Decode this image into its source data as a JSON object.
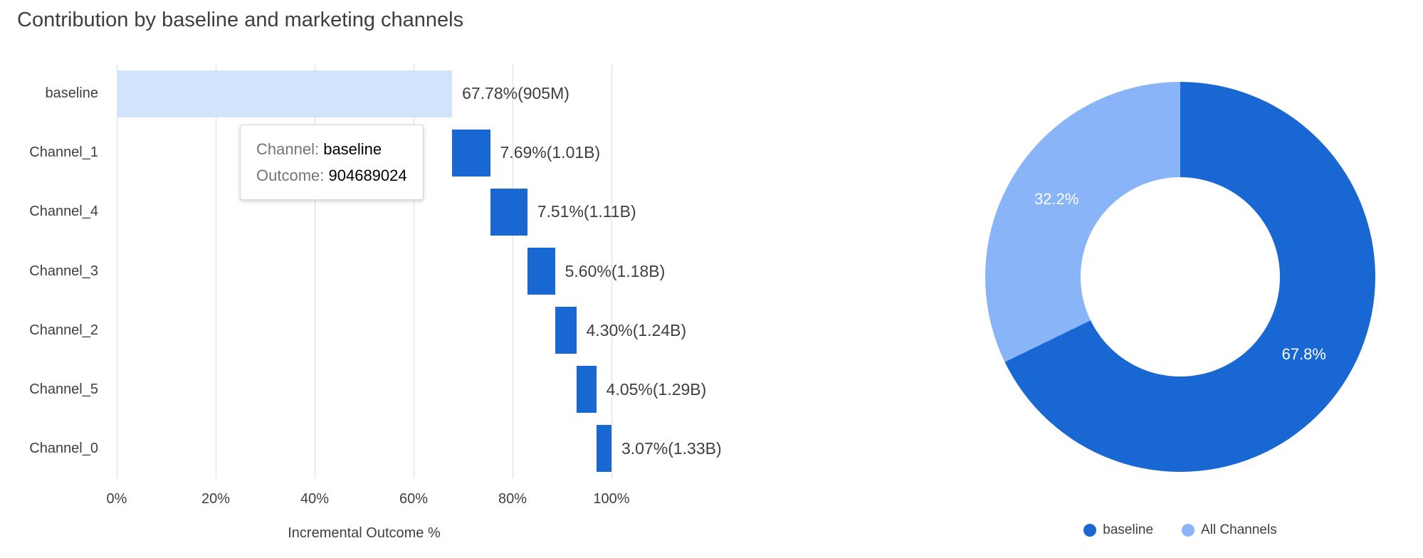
{
  "colors": {
    "primary_blue": "#1967d2",
    "light_blue": "#8ab4f8",
    "baseline_fill": "#d2e3fc",
    "gridline": "#dadce0",
    "text_dark": "#3c4043",
    "tooltip_label_gray": "#757575",
    "tooltip_value_black": "#000000",
    "slice_label_white": "#ffffff"
  },
  "chart_data": [
    {
      "type": "bar",
      "subtype": "horizontal-waterfall",
      "title": "Contribution by baseline and marketing channels",
      "xlabel": "Incremental Outcome %",
      "xlim": [
        0,
        107
      ],
      "grid": true,
      "x_ticks": [
        "0%",
        "20%",
        "40%",
        "60%",
        "80%",
        "100%"
      ],
      "x_tick_values": [
        0,
        20,
        40,
        60,
        80,
        100
      ],
      "categories": [
        "baseline",
        "Channel_1",
        "Channel_4",
        "Channel_3",
        "Channel_2",
        "Channel_5",
        "Channel_0"
      ],
      "segments": [
        {
          "category": "baseline",
          "start": 0,
          "end": 67.78,
          "pct": 67.78,
          "label": "67.78%(905M)",
          "color": "#d2e3fc"
        },
        {
          "category": "Channel_1",
          "start": 67.78,
          "end": 75.47,
          "pct": 7.69,
          "label": "7.69%(1.01B)",
          "color": "#1967d2"
        },
        {
          "category": "Channel_4",
          "start": 75.47,
          "end": 82.98,
          "pct": 7.51,
          "label": "7.51%(1.11B)",
          "color": "#1967d2"
        },
        {
          "category": "Channel_3",
          "start": 82.98,
          "end": 88.58,
          "pct": 5.6,
          "label": "5.60%(1.18B)",
          "color": "#1967d2"
        },
        {
          "category": "Channel_2",
          "start": 88.58,
          "end": 92.88,
          "pct": 4.3,
          "label": "4.30%(1.24B)",
          "color": "#1967d2"
        },
        {
          "category": "Channel_5",
          "start": 92.88,
          "end": 96.93,
          "pct": 4.05,
          "label": "4.05%(1.29B)",
          "color": "#1967d2"
        },
        {
          "category": "Channel_0",
          "start": 96.93,
          "end": 100.0,
          "pct": 3.07,
          "label": "3.07%(1.33B)",
          "color": "#1967d2"
        }
      ],
      "tooltip": {
        "channel_label": "Channel:",
        "channel_value": "baseline",
        "outcome_label": "Outcome:",
        "outcome_value": "904689024"
      }
    },
    {
      "type": "pie",
      "subtype": "donut",
      "legend_position": "bottom",
      "slices": [
        {
          "label": "baseline",
          "value": 67.8,
          "text": "67.8%",
          "color": "#1967d2"
        },
        {
          "label": "All Channels",
          "value": 32.2,
          "text": "32.2%",
          "color": "#8ab4f8"
        }
      ]
    }
  ]
}
